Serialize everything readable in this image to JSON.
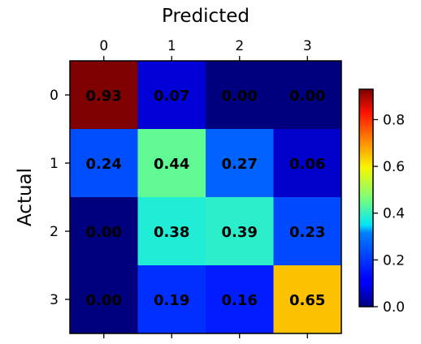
{
  "chart_data": {
    "type": "heatmap",
    "title": "",
    "xlabel": "Predicted",
    "ylabel": "Actual",
    "x_categories": [
      "0",
      "1",
      "2",
      "3"
    ],
    "y_categories": [
      "0",
      "1",
      "2",
      "3"
    ],
    "x_axis_position": "top",
    "values": [
      [
        0.93,
        0.07,
        0.0,
        0.0
      ],
      [
        0.24,
        0.44,
        0.27,
        0.06
      ],
      [
        0.0,
        0.38,
        0.39,
        0.23
      ],
      [
        0.0,
        0.19,
        0.16,
        0.65
      ]
    ],
    "cell_labels": [
      [
        "0.93",
        "0.07",
        "0.00",
        "0.00"
      ],
      [
        "0.24",
        "0.44",
        "0.27",
        "0.06"
      ],
      [
        "0.00",
        "0.38",
        "0.39",
        "0.23"
      ],
      [
        "0.00",
        "0.19",
        "0.16",
        "0.65"
      ]
    ],
    "colormap": "jet",
    "colorbar": {
      "range": [
        0.0,
        0.93
      ],
      "ticks": [
        0.0,
        0.2,
        0.4,
        0.6,
        0.8
      ],
      "tick_labels": [
        "0.0",
        "0.2",
        "0.4",
        "0.6",
        "0.8"
      ],
      "position": "right"
    },
    "grid": false
  }
}
